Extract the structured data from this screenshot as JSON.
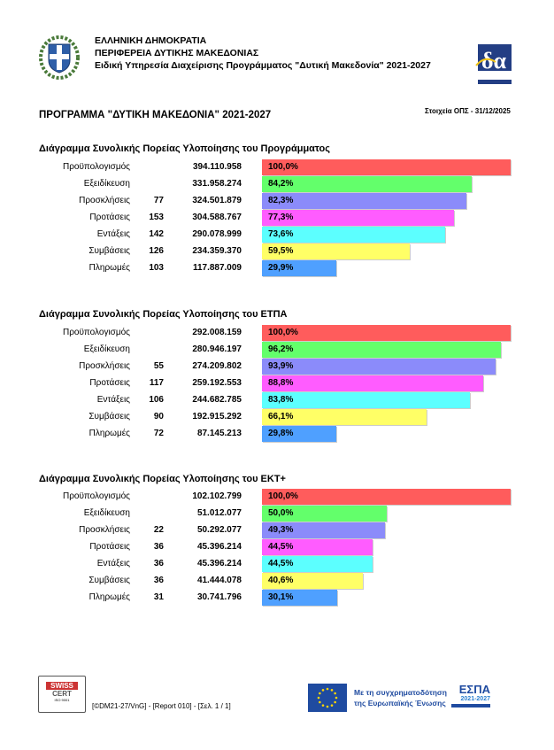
{
  "header": {
    "line1": "ΕΛΛΗΝΙΚΗ ΔΗΜΟΚΡΑΤΙΑ",
    "line2": "ΠΕΡΙΦΕΡΕΙΑ ΔΥΤΙΚΗΣ ΜΑΚΕΔΟΝΙΑΣ",
    "line3": "Ειδική Υπηρεσία Διαχείρισης Προγράμματος \"Δυτική Μακεδονία\" 2021-2027",
    "logo_left": "greek-coat-of-arms-icon",
    "logo_right": "eya-dytikis-makedonias-logo"
  },
  "program_title": "ΠΡΟΓΡΑΜΜΑ \"ΔΥΤΙΚΗ ΜΑΚΕΔΟΝΙΑ\" 2021-2027",
  "ops_date": "Στοιχεία ΟΠΣ - 31/12/2025",
  "colors": [
    "#ff5c5c",
    "#63ff6b",
    "#8b8bfa",
    "#ff5cff",
    "#5cffff",
    "#ffff66",
    "#4fa0ff"
  ],
  "chart_data": [
    {
      "type": "bar",
      "title": "Διάγραμμα Συνολικής Πορείας Υλοποίησης του Προγράμματος",
      "categories": [
        "Προϋπολογισμός",
        "Εξειδίκευση",
        "Προσκλήσεις",
        "Προτάσεις",
        "Εντάξεις",
        "Συμβάσεις",
        "Πληρωμές"
      ],
      "counts": [
        "",
        "",
        "77",
        "153",
        "142",
        "126",
        "103"
      ],
      "amounts": [
        "394.110.958",
        "331.958.274",
        "324.501.879",
        "304.588.767",
        "290.078.999",
        "234.359.370",
        "117.887.009"
      ],
      "values": [
        100.0,
        84.2,
        82.3,
        77.3,
        73.6,
        59.5,
        29.9
      ],
      "labels": [
        "100,0%",
        "84,2%",
        "82,3%",
        "77,3%",
        "73,6%",
        "59,5%",
        "29,9%"
      ]
    },
    {
      "type": "bar",
      "title": "Διάγραμμα Συνολικής Πορείας Υλοποίησης του ΕΤΠΑ",
      "categories": [
        "Προϋπολογισμός",
        "Εξειδίκευση",
        "Προσκλήσεις",
        "Προτάσεις",
        "Εντάξεις",
        "Συμβάσεις",
        "Πληρωμές"
      ],
      "counts": [
        "",
        "",
        "55",
        "117",
        "106",
        "90",
        "72"
      ],
      "amounts": [
        "292.008.159",
        "280.946.197",
        "274.209.802",
        "259.192.553",
        "244.682.785",
        "192.915.292",
        "87.145.213"
      ],
      "values": [
        100.0,
        96.2,
        93.9,
        88.8,
        83.8,
        66.1,
        29.8
      ],
      "labels": [
        "100,0%",
        "96,2%",
        "93,9%",
        "88,8%",
        "83,8%",
        "66,1%",
        "29,8%"
      ]
    },
    {
      "type": "bar",
      "title": "Διάγραμμα Συνολικής Πορείας Υλοποίησης του ΕΚΤ+",
      "categories": [
        "Προϋπολογισμός",
        "Εξειδίκευση",
        "Προσκλήσεις",
        "Προτάσεις",
        "Εντάξεις",
        "Συμβάσεις",
        "Πληρωμές"
      ],
      "counts": [
        "",
        "",
        "22",
        "36",
        "36",
        "36",
        "31"
      ],
      "amounts": [
        "102.102.799",
        "51.012.077",
        "50.292.077",
        "45.396.214",
        "45.396.214",
        "41.444.078",
        "30.741.796"
      ],
      "values": [
        100.0,
        50.0,
        49.3,
        44.5,
        44.5,
        40.6,
        30.1
      ],
      "labels": [
        "100,0%",
        "50,0%",
        "49,3%",
        "44,5%",
        "44,5%",
        "40,6%",
        "30,1%"
      ]
    }
  ],
  "footer": {
    "report_ref": "[©DM21-27/VnG] - [Report 010] - [Σελ. 1 / 1]",
    "cert_logo": "SWISS CERT",
    "eu_text_1": "Με τη συγχρηματοδότηση",
    "eu_text_2": "της Ευρωπαϊκής Ένωσης",
    "espa_logo": "ΕΣΠΑ 2021-2027"
  }
}
